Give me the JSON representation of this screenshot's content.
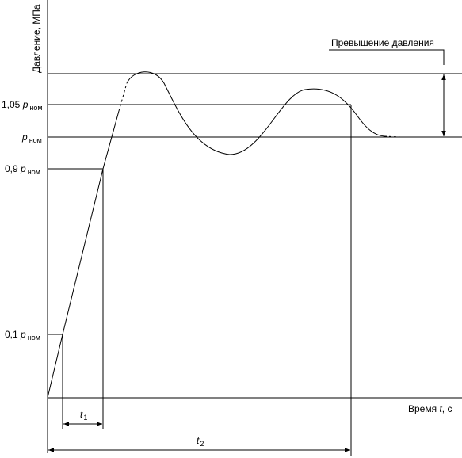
{
  "diagram": {
    "y_axis_label": "Давление, МПа",
    "x_axis_label": {
      "word": "Время",
      "symbol": "t",
      "unit": ", с"
    },
    "overshoot_label": "Превышение давления",
    "levels": [
      {
        "coef": "1,05",
        "symbol": "p",
        "sub": "ном"
      },
      {
        "symbol": "p",
        "sub": "ном"
      },
      {
        "coef": "0,9",
        "symbol": "p",
        "sub": "ном"
      },
      {
        "coef": "0,1",
        "symbol": "p",
        "sub": "ном"
      }
    ],
    "intervals": [
      {
        "symbol": "t",
        "sub": "1"
      },
      {
        "symbol": "t",
        "sub": "2"
      }
    ]
  }
}
